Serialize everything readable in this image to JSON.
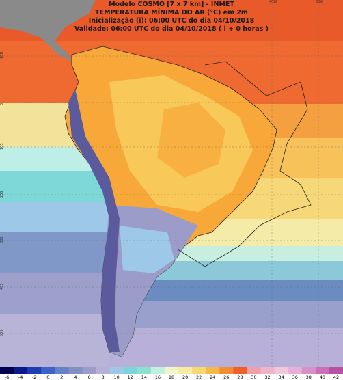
{
  "header": {
    "lines": [
      "Modelo COSMO [7 x 7 km] - INMET",
      "TEMPERATURA MÍNIMA DO AR (°C) em 2m",
      "Inicialização (i): 06:00 UTC do dia 04/10/2018",
      "Validade: 06:00 UTC do dia 04/10/2018 ( i + 0 horas )"
    ]
  },
  "map": {
    "lat_labels": [
      "10N",
      "0",
      "10S",
      "20S",
      "30S",
      "40S",
      "50S"
    ],
    "lon_labels": [
      "40W",
      "30W"
    ]
  },
  "colorbar": {
    "ticks": [
      -6,
      -4,
      -2,
      0,
      2,
      4,
      6,
      8,
      10,
      12,
      14,
      16,
      18,
      20,
      22,
      24,
      26,
      28,
      30,
      32,
      34,
      36,
      38,
      40,
      42
    ],
    "colors": [
      "#000050",
      "#0a1a8c",
      "#1e3cb4",
      "#3c64c8",
      "#6482c8",
      "#8290c4",
      "#9c9cc8",
      "#b4b0d8",
      "#9ec8e8",
      "#7cd4dc",
      "#8ce0d0",
      "#bff0e0",
      "#eef6c8",
      "#f6eca0",
      "#f8d870",
      "#f8b848",
      "#f48c34",
      "#ee6028",
      "#f0a0a8",
      "#f0b4c8",
      "#f0c8dc",
      "#e8b0d8",
      "#d890c8",
      "#c870b8",
      "#b850a8"
    ]
  }
}
